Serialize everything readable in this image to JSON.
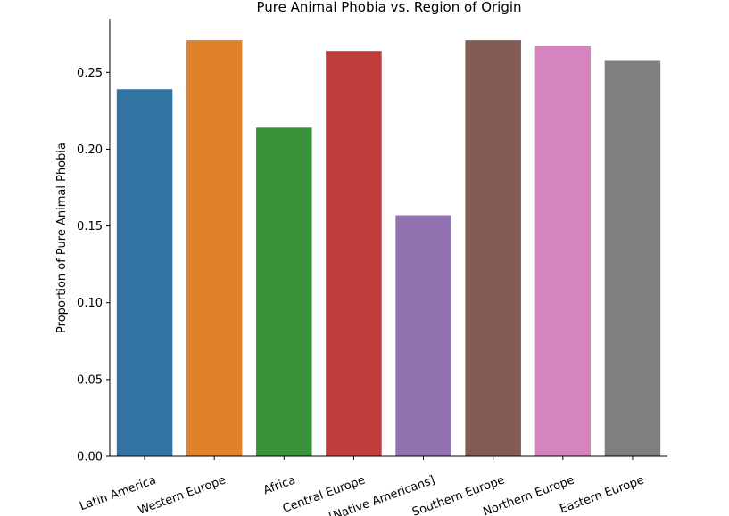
{
  "chart_data": {
    "type": "bar",
    "title": "Pure Animal Phobia vs. Region of Origin",
    "xlabel": "",
    "ylabel": "Proportion of Pure Animal Phobia",
    "categories": [
      "Latin America",
      "Western Europe",
      "Africa",
      "Central Europe",
      "[Native Americans]",
      "Southern Europe",
      "Northern Europe",
      "Eastern Europe"
    ],
    "values": [
      0.239,
      0.271,
      0.214,
      0.264,
      0.157,
      0.271,
      0.267,
      0.258
    ],
    "colors": [
      "#3274a1",
      "#e1812c",
      "#3a923a",
      "#c03d3e",
      "#9372b2",
      "#845b53",
      "#d684bd",
      "#7f7f7f"
    ],
    "ylim": [
      0,
      0.285
    ],
    "yticks": [
      0.0,
      0.05,
      0.1,
      0.15,
      0.2,
      0.25
    ],
    "ytick_labels": [
      "0.00",
      "0.05",
      "0.10",
      "0.15",
      "0.20",
      "0.25"
    ],
    "grid": false,
    "legend": "none"
  }
}
